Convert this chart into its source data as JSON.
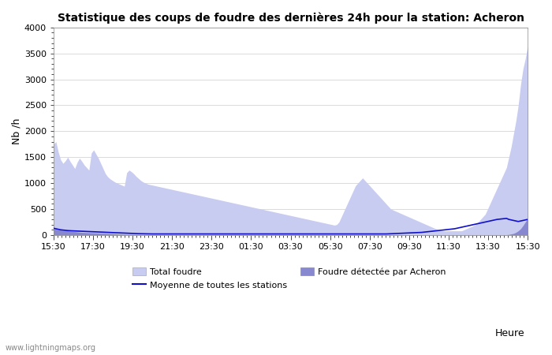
{
  "title": "Statistique des coups de foudre des dernières 24h pour la station: Acheron",
  "xlabel": "Heure",
  "ylabel": "Nb /h",
  "xlim_labels": [
    "15:30",
    "17:30",
    "19:30",
    "21:30",
    "23:30",
    "01:30",
    "03:30",
    "05:30",
    "07:30",
    "09:30",
    "11:30",
    "13:30",
    "15:30"
  ],
  "ylim": [
    0,
    4000
  ],
  "yticks": [
    0,
    500,
    1000,
    1500,
    2000,
    2500,
    3000,
    3500,
    4000
  ],
  "color_total": "#c8ccf0",
  "color_detected": "#8888d0",
  "color_mean_line": "#1010cc",
  "color_bg": "#ffffff",
  "color_grid": "#cccccc",
  "watermark": "www.lightningmaps.org",
  "legend": {
    "total": "Total foudre",
    "detected": "Foudre détectée par Acheron",
    "mean": "Moyenne de toutes les stations"
  },
  "total_foudre": [
    1750,
    1800,
    1600,
    1450,
    1380,
    1430,
    1500,
    1420,
    1350,
    1280,
    1400,
    1480,
    1420,
    1350,
    1300,
    1250,
    1580,
    1640,
    1560,
    1480,
    1380,
    1280,
    1180,
    1120,
    1080,
    1050,
    1020,
    1000,
    980,
    960,
    940,
    1200,
    1250,
    1220,
    1180,
    1130,
    1090,
    1050,
    1020,
    1000,
    980,
    970,
    960,
    950,
    940,
    930,
    920,
    910,
    900,
    890,
    880,
    870,
    860,
    850,
    840,
    830,
    820,
    810,
    800,
    790,
    780,
    770,
    760,
    750,
    740,
    730,
    720,
    710,
    700,
    690,
    680,
    670,
    660,
    650,
    640,
    630,
    620,
    610,
    600,
    590,
    580,
    570,
    560,
    550,
    540,
    530,
    520,
    510,
    500,
    490,
    480,
    470,
    460,
    450,
    440,
    430,
    420,
    410,
    400,
    390,
    380,
    370,
    360,
    350,
    340,
    330,
    320,
    310,
    300,
    290,
    280,
    270,
    260,
    250,
    240,
    230,
    220,
    210,
    200,
    190,
    200,
    250,
    350,
    450,
    550,
    650,
    750,
    850,
    950,
    1000,
    1050,
    1100,
    1050,
    1000,
    950,
    900,
    850,
    800,
    750,
    700,
    650,
    600,
    550,
    500,
    480,
    460,
    440,
    420,
    400,
    380,
    360,
    340,
    320,
    300,
    280,
    260,
    240,
    220,
    200,
    180,
    160,
    140,
    120,
    100,
    80,
    80,
    80,
    80,
    80,
    80,
    80,
    80,
    80,
    80,
    100,
    120,
    140,
    160,
    180,
    200,
    250,
    300,
    350,
    400,
    500,
    600,
    700,
    800,
    900,
    1000,
    1100,
    1200,
    1300,
    1500,
    1700,
    1950,
    2200,
    2500,
    2900,
    3200,
    3400,
    3650
  ],
  "detected_foudre": [
    120,
    110,
    100,
    95,
    90,
    85,
    80,
    75,
    70,
    65,
    60,
    55,
    50,
    48,
    46,
    44,
    42,
    40,
    38,
    36,
    34,
    32,
    30,
    28,
    26,
    24,
    22,
    20,
    18,
    16,
    14,
    12,
    11,
    10,
    9,
    8,
    7,
    6,
    5,
    5,
    5,
    5,
    5,
    5,
    5,
    5,
    5,
    5,
    5,
    5,
    5,
    5,
    5,
    5,
    5,
    5,
    5,
    5,
    5,
    5,
    5,
    5,
    5,
    5,
    5,
    5,
    5,
    5,
    5,
    5,
    5,
    5,
    5,
    5,
    5,
    5,
    5,
    5,
    5,
    5,
    5,
    5,
    5,
    5,
    5,
    5,
    5,
    5,
    5,
    5,
    5,
    5,
    5,
    5,
    5,
    5,
    5,
    5,
    5,
    5,
    5,
    5,
    5,
    5,
    5,
    5,
    5,
    5,
    5,
    5,
    5,
    5,
    5,
    5,
    5,
    5,
    5,
    5,
    5,
    5,
    5,
    5,
    5,
    5,
    5,
    5,
    5,
    5,
    5,
    5,
    5,
    5,
    5,
    5,
    5,
    5,
    5,
    5,
    5,
    5,
    5,
    5,
    5,
    5,
    5,
    5,
    5,
    5,
    5,
    5,
    5,
    5,
    5,
    5,
    5,
    5,
    5,
    5,
    5,
    5,
    5,
    5,
    5,
    5,
    5,
    5,
    5,
    5,
    5,
    5,
    5,
    5,
    5,
    5,
    5,
    5,
    5,
    5,
    5,
    5,
    5,
    5,
    5,
    5,
    5,
    5,
    5,
    5,
    5,
    5,
    5,
    5,
    5,
    10,
    20,
    30,
    50,
    80,
    120,
    180,
    250,
    320
  ],
  "mean_line": [
    130,
    120,
    110,
    100,
    95,
    90,
    85,
    82,
    80,
    78,
    76,
    74,
    72,
    70,
    68,
    66,
    64,
    62,
    60,
    58,
    56,
    54,
    52,
    50,
    48,
    46,
    44,
    42,
    40,
    38,
    36,
    34,
    32,
    30,
    28,
    26,
    25,
    24,
    23,
    22,
    21,
    20,
    20,
    20,
    20,
    20,
    20,
    20,
    20,
    20,
    20,
    20,
    20,
    20,
    20,
    20,
    20,
    20,
    20,
    20,
    20,
    20,
    20,
    20,
    20,
    20,
    20,
    20,
    20,
    20,
    20,
    20,
    20,
    20,
    20,
    20,
    20,
    20,
    20,
    20,
    20,
    20,
    20,
    20,
    20,
    20,
    20,
    20,
    20,
    20,
    20,
    20,
    20,
    20,
    20,
    20,
    20,
    20,
    20,
    20,
    20,
    20,
    20,
    20,
    20,
    20,
    20,
    20,
    20,
    20,
    20,
    20,
    20,
    20,
    20,
    20,
    20,
    20,
    20,
    20,
    20,
    20,
    20,
    20,
    20,
    20,
    20,
    20,
    20,
    20,
    20,
    20,
    20,
    20,
    20,
    20,
    20,
    20,
    20,
    20,
    20,
    20,
    22,
    24,
    26,
    28,
    30,
    32,
    34,
    36,
    38,
    40,
    42,
    44,
    46,
    48,
    50,
    55,
    60,
    65,
    70,
    75,
    80,
    85,
    90,
    95,
    100,
    105,
    110,
    115,
    120,
    130,
    140,
    150,
    160,
    170,
    180,
    190,
    200,
    210,
    220,
    230,
    240,
    250,
    260,
    270,
    280,
    290,
    300,
    305,
    310,
    315,
    320,
    300,
    290,
    280,
    270,
    260,
    270,
    280,
    290,
    300
  ]
}
